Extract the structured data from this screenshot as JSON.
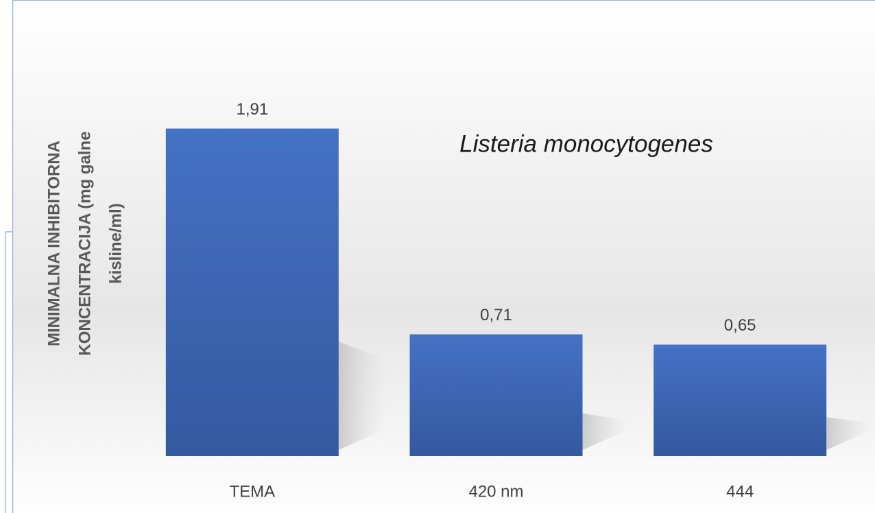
{
  "chart_data": {
    "type": "bar",
    "ylabel": [
      "MINIMALNA INHIBITORNA",
      "KONCENTRACIJA (mg galne",
      "kisline/ml)"
    ],
    "annotation": "Listeria monocytogenes",
    "categories": [
      "TEMA",
      "420 nm",
      "444"
    ],
    "values": [
      1.91,
      0.71,
      0.65
    ],
    "value_labels": [
      "1,91",
      "0,71",
      "0,65"
    ],
    "color": "#4472c4",
    "ylim": [
      0,
      2.2
    ]
  }
}
